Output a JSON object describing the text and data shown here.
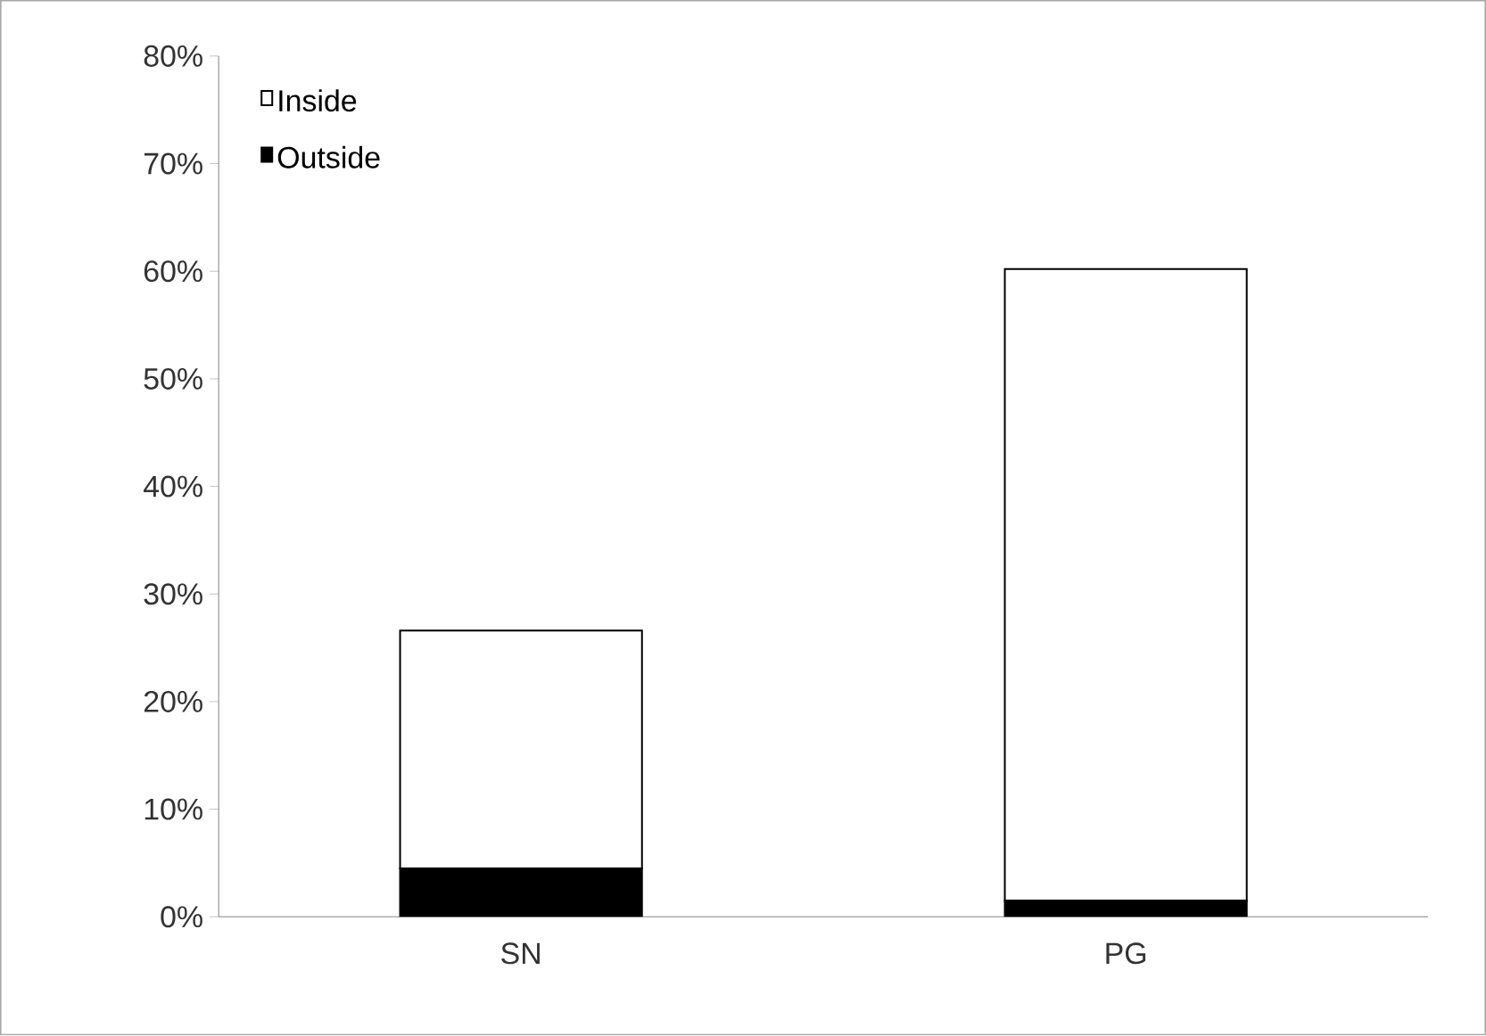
{
  "chart_data": {
    "type": "bar",
    "stacked": true,
    "categories": [
      "SN",
      "PG"
    ],
    "series": [
      {
        "name": "Outside",
        "color": "#000000",
        "values": [
          4.5,
          1.5
        ]
      },
      {
        "name": "Inside",
        "color": "#ffffff",
        "values": [
          22.1,
          58.7
        ]
      }
    ],
    "ylim": [
      0,
      80
    ],
    "yticks": [
      {
        "value": 0,
        "label": "0%"
      },
      {
        "value": 10,
        "label": "10%"
      },
      {
        "value": 20,
        "label": "20%"
      },
      {
        "value": 30,
        "label": "30%"
      },
      {
        "value": 40,
        "label": "40%"
      },
      {
        "value": 50,
        "label": "50%"
      },
      {
        "value": 60,
        "label": "60%"
      },
      {
        "value": 70,
        "label": "70%"
      },
      {
        "value": 80,
        "label": "80%"
      }
    ],
    "legend": "top left",
    "grid": false
  }
}
